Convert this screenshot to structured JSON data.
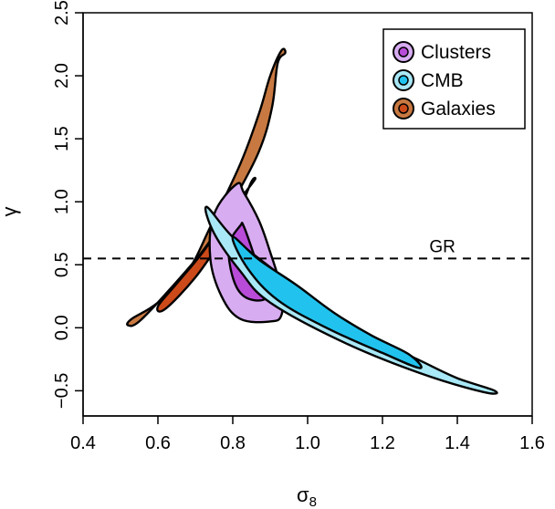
{
  "chart_data": {
    "type": "contour",
    "xlabel": "σ",
    "xlabel_subscript": "8",
    "ylabel": "γ",
    "xlim": [
      0.4,
      1.6
    ],
    "ylim": [
      -0.7,
      2.5
    ],
    "x_ticks": [
      "0.4",
      "0.6",
      "0.8",
      "1.0",
      "1.2",
      "1.4",
      "1.6"
    ],
    "y_ticks": [
      "−0.5",
      "0.0",
      "0.5",
      "1.0",
      "1.5",
      "2.0",
      "2.5"
    ],
    "x_tick_values": [
      0.4,
      0.6,
      0.8,
      1.0,
      1.2,
      1.4,
      1.6
    ],
    "y_tick_values": [
      -0.5,
      0.0,
      0.5,
      1.0,
      1.5,
      2.0,
      2.5
    ],
    "legend_position": "top-right",
    "reference_line": {
      "label": "GR",
      "y": 0.55,
      "style": "dashed"
    },
    "series": [
      {
        "name": "Galaxies",
        "outer_color": "#c87941",
        "inner_color": "#cc4a1a",
        "outer": [
          [
            0.94,
            2.18
          ],
          [
            0.92,
            2.1
          ],
          [
            0.905,
            1.75
          ],
          [
            0.87,
            1.4
          ],
          [
            0.8,
            1.0
          ],
          [
            0.73,
            0.65
          ],
          [
            0.63,
            0.3
          ],
          [
            0.55,
            0.05
          ],
          [
            0.52,
            0.02
          ],
          [
            0.53,
            0.07
          ],
          [
            0.6,
            0.2
          ],
          [
            0.68,
            0.45
          ],
          [
            0.74,
            0.8
          ],
          [
            0.82,
            1.3
          ],
          [
            0.87,
            1.7
          ],
          [
            0.9,
            2.0
          ],
          [
            0.93,
            2.2
          ]
        ],
        "inner": [
          [
            0.86,
            1.18
          ],
          [
            0.85,
            1.16
          ],
          [
            0.82,
            0.95
          ],
          [
            0.77,
            0.7
          ],
          [
            0.7,
            0.4
          ],
          [
            0.62,
            0.15
          ],
          [
            0.6,
            0.17
          ],
          [
            0.65,
            0.35
          ],
          [
            0.72,
            0.6
          ],
          [
            0.79,
            0.9
          ],
          [
            0.84,
            1.1
          ]
        ]
      },
      {
        "name": "Clusters",
        "outer_color": "#d8acf1",
        "inner_color": "#b84cd8",
        "outer": [
          [
            0.81,
            1.14
          ],
          [
            0.83,
            1.07
          ],
          [
            0.87,
            0.85
          ],
          [
            0.9,
            0.6
          ],
          [
            0.93,
            0.3
          ],
          [
            0.93,
            0.1
          ],
          [
            0.9,
            0.05
          ],
          [
            0.82,
            0.07
          ],
          [
            0.77,
            0.25
          ],
          [
            0.74,
            0.55
          ],
          [
            0.75,
            0.9
          ]
        ],
        "inner": [
          [
            0.82,
            0.81
          ],
          [
            0.83,
            0.8
          ],
          [
            0.86,
            0.55
          ],
          [
            0.89,
            0.3
          ],
          [
            0.88,
            0.22
          ],
          [
            0.83,
            0.25
          ],
          [
            0.8,
            0.4
          ],
          [
            0.79,
            0.65
          ]
        ]
      },
      {
        "name": "CMB",
        "outer_color": "#a9e8f6",
        "inner_color": "#21c3ee",
        "outer": [
          [
            0.73,
            0.96
          ],
          [
            0.8,
            0.72
          ],
          [
            0.9,
            0.48
          ],
          [
            1.0,
            0.25
          ],
          [
            1.1,
            0.04
          ],
          [
            1.2,
            -0.12
          ],
          [
            1.3,
            -0.26
          ],
          [
            1.4,
            -0.4
          ],
          [
            1.5,
            -0.5
          ],
          [
            1.47,
            -0.51
          ],
          [
            1.3,
            -0.36
          ],
          [
            1.1,
            -0.12
          ],
          [
            0.9,
            0.2
          ],
          [
            0.82,
            0.45
          ],
          [
            0.75,
            0.75
          ]
        ],
        "inner": [
          [
            0.8,
            0.72
          ],
          [
            0.87,
            0.54
          ],
          [
            0.97,
            0.34
          ],
          [
            1.07,
            0.12
          ],
          [
            1.17,
            -0.06
          ],
          [
            1.27,
            -0.21
          ],
          [
            1.3,
            -0.32
          ],
          [
            1.2,
            -0.2
          ],
          [
            1.05,
            0.0
          ],
          [
            0.92,
            0.22
          ],
          [
            0.84,
            0.47
          ]
        ]
      }
    ]
  }
}
